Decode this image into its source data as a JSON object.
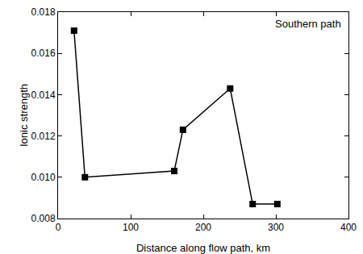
{
  "chart_data": {
    "type": "line",
    "x": [
      22,
      37,
      160,
      172,
      237,
      268,
      302
    ],
    "values": [
      0.0171,
      0.01,
      0.0103,
      0.0123,
      0.0143,
      0.0087,
      0.0087
    ],
    "xlabel": "Distance along flow path, km",
    "ylabel": "Ionic strength",
    "annotations": [
      "Southern path"
    ],
    "xlim": [
      0,
      400
    ],
    "xticks": [
      0,
      100,
      200,
      300,
      400
    ],
    "ylim": [
      0.008,
      0.018
    ],
    "yticks": [
      0.008,
      {
        "value": 0.01,
        "label": "0.010"
      },
      0.012,
      0.014,
      0.016,
      0.018
    ],
    "color": "#000000",
    "marker": "square",
    "line_style": "solid",
    "grid": false
  }
}
